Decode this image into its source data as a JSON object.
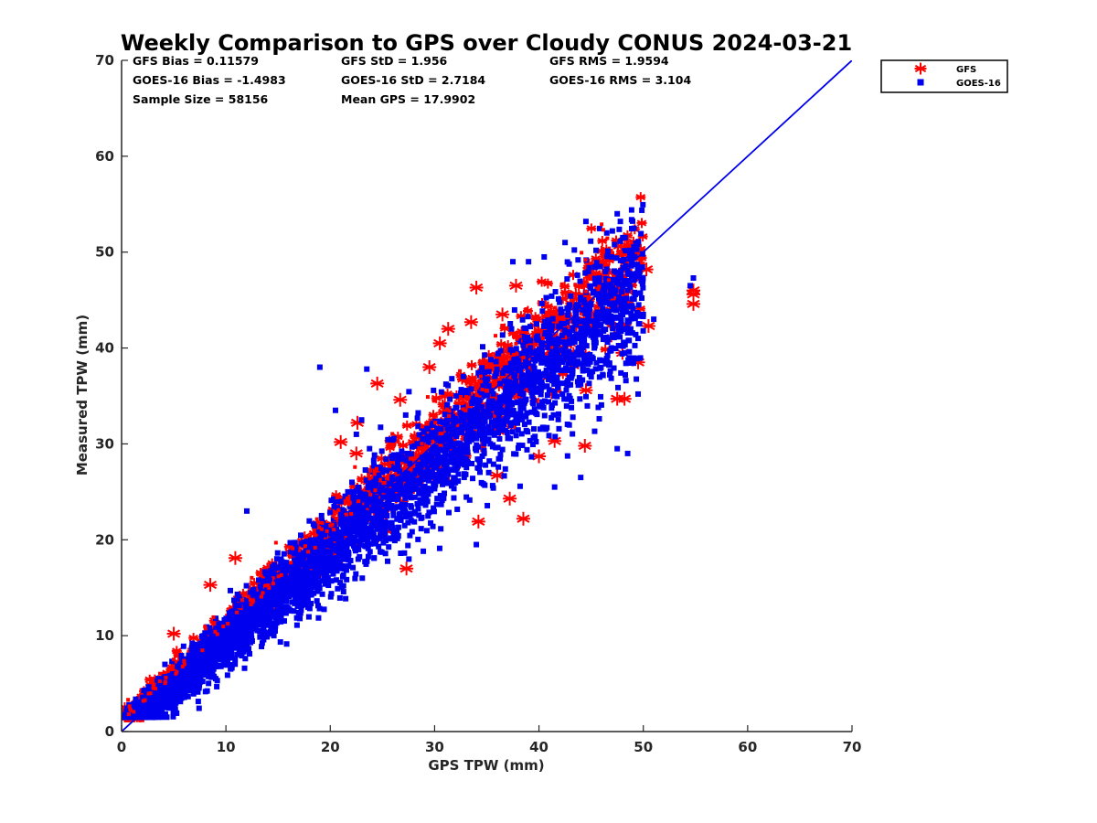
{
  "chart_data": {
    "type": "scatter",
    "title": "Weekly Comparison to GPS over Cloudy CONUS 2024-03-21",
    "xlabel": "GPS TPW (mm)",
    "ylabel": "Measured TPW (mm)",
    "xlim": [
      0,
      70
    ],
    "ylim": [
      0,
      70
    ],
    "xticks": [
      "0",
      "10",
      "20",
      "30",
      "40",
      "50",
      "60",
      "70"
    ],
    "yticks": [
      "0",
      "10",
      "20",
      "30",
      "40",
      "50",
      "60",
      "70"
    ],
    "grid": false,
    "legend_position": "outside-top-right",
    "stats": [
      [
        "GFS Bias = 0.11579",
        "GFS StD = 1.956",
        "GFS RMS = 1.9594"
      ],
      [
        "GOES-16 Bias = -1.4983",
        "GOES-16 StD = 2.7184",
        "GOES-16 RMS = 3.104"
      ],
      [
        "Sample Size = 58156",
        "Mean GPS = 17.9902",
        ""
      ]
    ],
    "reference_line": {
      "x": [
        0,
        70
      ],
      "y": [
        0,
        70
      ],
      "color": "#0000ee"
    },
    "series": [
      {
        "name": "GFS",
        "marker": "asterisk",
        "color": "#ff0000",
        "cloud": {
          "x_range": [
            0.3,
            50
          ],
          "slope": 0.99,
          "intercept": 0.6,
          "spread": 1.3
        },
        "outliers": [
          [
            24.5,
            36.3
          ],
          [
            26.7,
            34.6
          ],
          [
            34.0,
            46.3
          ],
          [
            36.5,
            43.5
          ],
          [
            37.8,
            46.5
          ],
          [
            37.2,
            24.3
          ],
          [
            38.5,
            22.2
          ],
          [
            34.2,
            21.9
          ],
          [
            40.0,
            28.7
          ],
          [
            41.5,
            30.3
          ],
          [
            44.4,
            29.8
          ],
          [
            47.5,
            34.7
          ],
          [
            48.2,
            34.7
          ],
          [
            49.5,
            38.5
          ],
          [
            50.3,
            48.2
          ],
          [
            50.5,
            42.3
          ],
          [
            54.8,
            45.6
          ],
          [
            54.8,
            44.6
          ],
          [
            54.8,
            46.0
          ],
          [
            48.0,
            39.5
          ],
          [
            47.8,
            45.5
          ],
          [
            44.5,
            35.6
          ],
          [
            31.3,
            42.0
          ],
          [
            29.5,
            38.0
          ],
          [
            33.5,
            42.7
          ],
          [
            27.3,
            17.0
          ],
          [
            10.9,
            18.1
          ],
          [
            8.5,
            15.3
          ],
          [
            5.0,
            10.2
          ],
          [
            21.0,
            30.2
          ],
          [
            22.5,
            29.0
          ],
          [
            22.6,
            32.2
          ],
          [
            30.5,
            40.5
          ],
          [
            3.1,
            1.9
          ],
          [
            36.0,
            26.7
          ]
        ]
      },
      {
        "name": "GOES-16",
        "marker": "square",
        "color": "#0000ee",
        "cloud": {
          "x_range": [
            0.3,
            50
          ],
          "slope": 0.93,
          "intercept": 0.0,
          "spread": 1.9
        },
        "outliers": [
          [
            47.5,
            54.0
          ],
          [
            47.8,
            53.2
          ],
          [
            44.5,
            53.2
          ],
          [
            46.5,
            52.0
          ],
          [
            42.5,
            51.0
          ],
          [
            37.5,
            49.0
          ],
          [
            39.0,
            49.0
          ],
          [
            40.5,
            49.5
          ],
          [
            54.8,
            47.3
          ],
          [
            54.5,
            46.5
          ],
          [
            51.0,
            43.0
          ],
          [
            50.0,
            43.5
          ],
          [
            49.5,
            41.0
          ],
          [
            23.5,
            37.8
          ],
          [
            44.0,
            26.5
          ],
          [
            47.5,
            29.5
          ],
          [
            48.5,
            29.0
          ],
          [
            49.5,
            35.2
          ],
          [
            34.0,
            19.5
          ],
          [
            19.0,
            38.0
          ],
          [
            23.0,
            32.5
          ],
          [
            20.5,
            33.5
          ],
          [
            41.5,
            25.5
          ],
          [
            22.5,
            31.0
          ],
          [
            12.0,
            23.0
          ]
        ]
      }
    ]
  }
}
